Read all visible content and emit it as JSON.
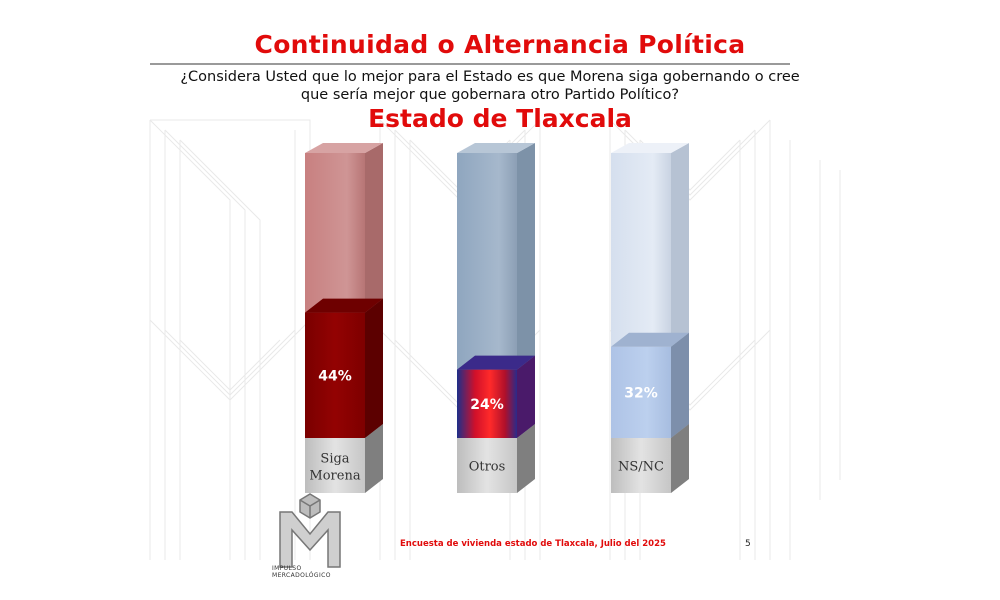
{
  "header": {
    "title": "Continuidad o Alternancia Política",
    "question_line1": "¿Considera Usted que lo mejor para el Estado es que Morena siga gobernando o cree",
    "question_line2": "que sería mejor que gobernara otro Partido Político?",
    "subtitle": "Estado de Tlaxcala"
  },
  "colors": {
    "title": "#e10b0b",
    "footer": "#e10b0b",
    "morena": "#8b0000",
    "morena_bg": "#c98a8a",
    "otros_bg": "#9aaec4",
    "nsnc": "#b4c9e8",
    "nsnc_bg": "#dce5f1",
    "label_box": "#c9c9c9"
  },
  "chart_data": {
    "type": "bar",
    "categories": [
      "Siga Morena",
      "Otros",
      "NS/NC"
    ],
    "values": [
      44,
      24,
      32
    ],
    "data_labels": [
      "44%",
      "24%",
      "32%"
    ],
    "ylim": [
      0,
      100
    ],
    "style": "3d-cylinder-columns"
  },
  "footer": {
    "text": "Encuesta de vivienda estado de Tlaxcala, Julio   del 2025",
    "page": "5"
  },
  "logo": {
    "line1": "IMPULSO",
    "line2": "MERCADOLÓGICO"
  }
}
